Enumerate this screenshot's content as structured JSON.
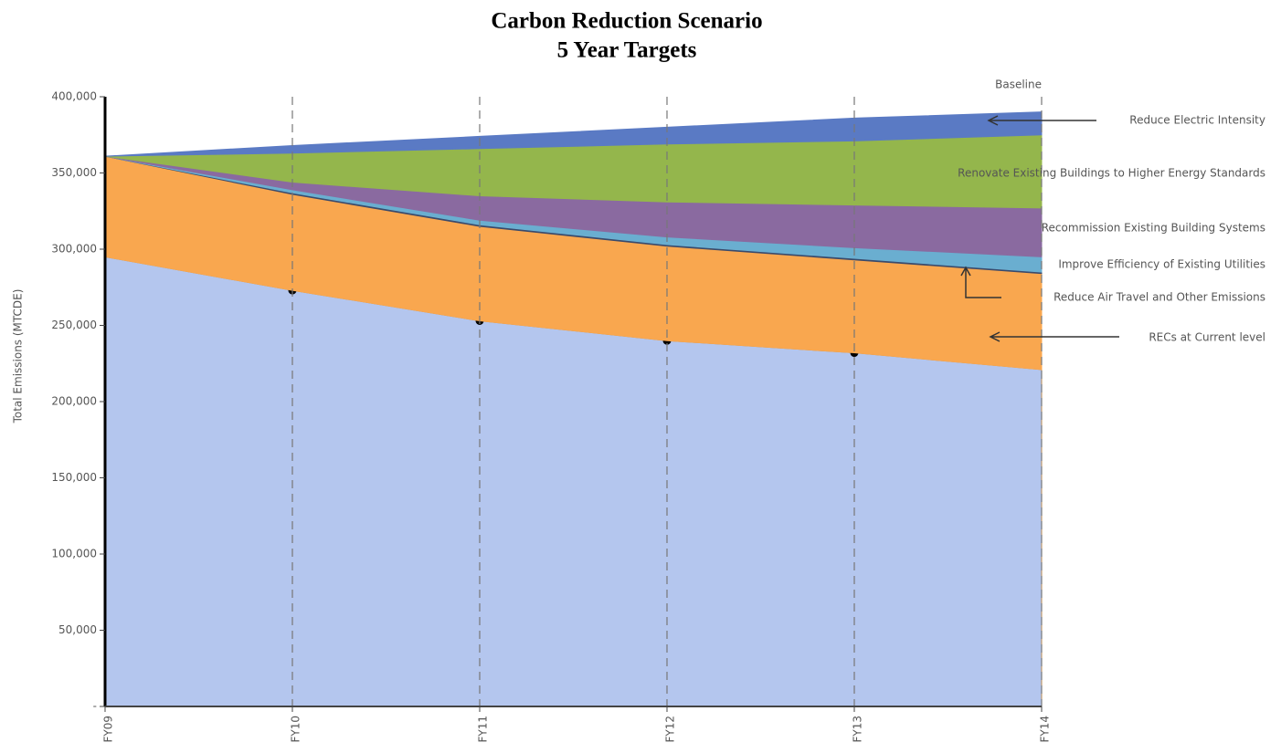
{
  "chart_data": {
    "type": "stacked_area",
    "title": "Carbon Reduction Scenario",
    "subtitle": "5 Year Targets",
    "y_label": "Total Emissions (MTCDE)",
    "annotation": "Baseline",
    "categories": [
      "FY09",
      "FY10",
      "FY11",
      "FY12",
      "FY13",
      "FY14"
    ],
    "series": [
      {
        "color": "#b4c6ee",
        "values": [
          295000,
          273000,
          253000,
          240000,
          232000,
          221000
        ],
        "markers": true
      },
      {
        "name": "RECs at Current level",
        "color": "#f9a74f",
        "values": [
          66000,
          63000,
          62000,
          62000,
          61000,
          63000
        ]
      },
      {
        "name": "Reduce Air Travel and Other Emissions",
        "color": "#3b4a6b",
        "values": [
          0,
          1000,
          1000,
          1000,
          1000,
          1000
        ]
      },
      {
        "name": "Improve Efficiency of Existing Utilities",
        "color": "#6aaed0",
        "values": [
          0,
          2000,
          3000,
          5000,
          7000,
          10000
        ]
      },
      {
        "name": "Recommission Existing Building Systems",
        "color": "#8a6aa0",
        "values": [
          0,
          5000,
          16000,
          23000,
          28000,
          32000
        ]
      },
      {
        "name": "Renovate Existing Buildings to Higher Energy Standards",
        "color": "#94b64c",
        "values": [
          0,
          19000,
          31000,
          38000,
          42000,
          48000
        ]
      },
      {
        "name": "Reduce Electric Intensity",
        "color": "#5a7ac4",
        "values": [
          0,
          5000,
          8000,
          11000,
          15000,
          15000
        ]
      }
    ],
    "ylim": [
      0,
      400000
    ],
    "yticks": [
      {
        "value": 0,
        "label": "-"
      },
      {
        "value": 50000,
        "label": "50,000"
      },
      {
        "value": 100000,
        "label": "100,000"
      },
      {
        "value": 150000,
        "label": "150,000"
      },
      {
        "value": 200000,
        "label": "200,000"
      },
      {
        "value": 250000,
        "label": "250,000"
      },
      {
        "value": 300000,
        "label": "300,000"
      },
      {
        "value": 350000,
        "label": "350,000"
      },
      {
        "value": 400000,
        "label": "400,000"
      }
    ],
    "grid": "x"
  }
}
